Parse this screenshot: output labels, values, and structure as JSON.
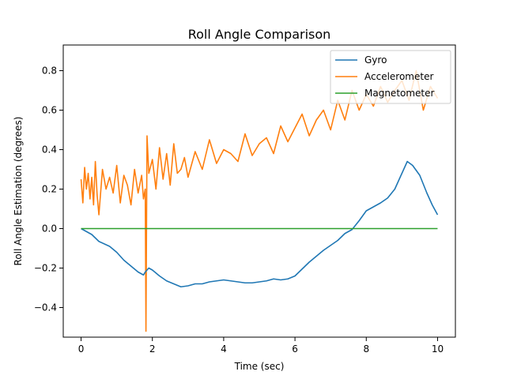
{
  "chart_data": {
    "type": "line",
    "title": "Roll Angle Comparison",
    "xlabel": "Time (sec)",
    "ylabel": "Roll Angle Estimation (degrees)",
    "xlim": [
      -0.5,
      10.5
    ],
    "ylim": [
      -0.55,
      0.93
    ],
    "x_ticks": [
      0,
      2,
      4,
      6,
      8,
      10
    ],
    "x_tick_labels": [
      "0",
      "2",
      "4",
      "6",
      "8",
      "10"
    ],
    "y_ticks": [
      -0.4,
      -0.2,
      0.0,
      0.2,
      0.4,
      0.6,
      0.8
    ],
    "y_tick_labels": [
      "−0.4",
      "−0.2",
      "0.0",
      "0.2",
      "0.4",
      "0.6",
      "0.8"
    ],
    "grid": false,
    "legend_position": "top-right",
    "series": [
      {
        "name": "Gyro",
        "color": "#1f77b4",
        "x": [
          0,
          0.3,
          0.5,
          0.8,
          1.0,
          1.2,
          1.4,
          1.6,
          1.75,
          1.8,
          1.85,
          1.9,
          2.0,
          2.2,
          2.4,
          2.6,
          2.8,
          3.0,
          3.2,
          3.4,
          3.6,
          3.8,
          4.0,
          4.2,
          4.4,
          4.6,
          4.8,
          5.0,
          5.2,
          5.4,
          5.6,
          5.8,
          6.0,
          6.2,
          6.4,
          6.6,
          6.8,
          7.0,
          7.2,
          7.4,
          7.6,
          7.8,
          8.0,
          8.2,
          8.4,
          8.6,
          8.8,
          9.0,
          9.15,
          9.3,
          9.5,
          9.7,
          9.85,
          10.0
        ],
        "y": [
          0.0,
          -0.03,
          -0.065,
          -0.09,
          -0.12,
          -0.16,
          -0.19,
          -0.22,
          -0.235,
          -0.22,
          -0.21,
          -0.2,
          -0.21,
          -0.24,
          -0.265,
          -0.28,
          -0.295,
          -0.29,
          -0.28,
          -0.28,
          -0.27,
          -0.265,
          -0.26,
          -0.265,
          -0.27,
          -0.275,
          -0.275,
          -0.27,
          -0.265,
          -0.255,
          -0.26,
          -0.255,
          -0.24,
          -0.205,
          -0.17,
          -0.14,
          -0.11,
          -0.085,
          -0.06,
          -0.025,
          -0.005,
          0.04,
          0.09,
          0.11,
          0.13,
          0.155,
          0.2,
          0.28,
          0.34,
          0.32,
          0.27,
          0.18,
          0.12,
          0.07
        ]
      },
      {
        "name": "Accelerometer",
        "color": "#ff7f0e",
        "x": [
          0,
          0.05,
          0.1,
          0.15,
          0.2,
          0.25,
          0.3,
          0.35,
          0.4,
          0.45,
          0.5,
          0.6,
          0.7,
          0.8,
          0.9,
          1.0,
          1.1,
          1.2,
          1.3,
          1.4,
          1.5,
          1.6,
          1.7,
          1.75,
          1.8,
          1.82,
          1.85,
          1.9,
          2.0,
          2.1,
          2.2,
          2.3,
          2.4,
          2.5,
          2.6,
          2.7,
          2.8,
          2.9,
          3.0,
          3.2,
          3.4,
          3.6,
          3.8,
          4.0,
          4.2,
          4.4,
          4.6,
          4.8,
          5.0,
          5.2,
          5.4,
          5.6,
          5.8,
          6.0,
          6.2,
          6.4,
          6.6,
          6.8,
          7.0,
          7.2,
          7.4,
          7.6,
          7.8,
          8.0,
          8.2,
          8.4,
          8.6,
          8.8,
          9.0,
          9.2,
          9.4,
          9.6,
          9.8,
          10.0
        ],
        "y": [
          0.25,
          0.13,
          0.31,
          0.2,
          0.28,
          0.15,
          0.26,
          0.12,
          0.34,
          0.17,
          0.07,
          0.3,
          0.2,
          0.26,
          0.18,
          0.32,
          0.13,
          0.27,
          0.22,
          0.12,
          0.3,
          0.18,
          0.27,
          0.15,
          0.2,
          -0.52,
          0.47,
          0.28,
          0.35,
          0.2,
          0.41,
          0.25,
          0.38,
          0.22,
          0.43,
          0.28,
          0.3,
          0.36,
          0.26,
          0.39,
          0.3,
          0.45,
          0.33,
          0.4,
          0.38,
          0.34,
          0.48,
          0.37,
          0.43,
          0.46,
          0.38,
          0.52,
          0.44,
          0.51,
          0.58,
          0.47,
          0.55,
          0.6,
          0.5,
          0.65,
          0.55,
          0.7,
          0.6,
          0.68,
          0.62,
          0.72,
          0.64,
          0.7,
          0.75,
          0.65,
          0.8,
          0.6,
          0.72,
          0.66
        ]
      },
      {
        "name": "Magnetometer",
        "color": "#2ca02c",
        "x": [
          0,
          10
        ],
        "y": [
          0.0,
          0.0
        ]
      }
    ]
  }
}
